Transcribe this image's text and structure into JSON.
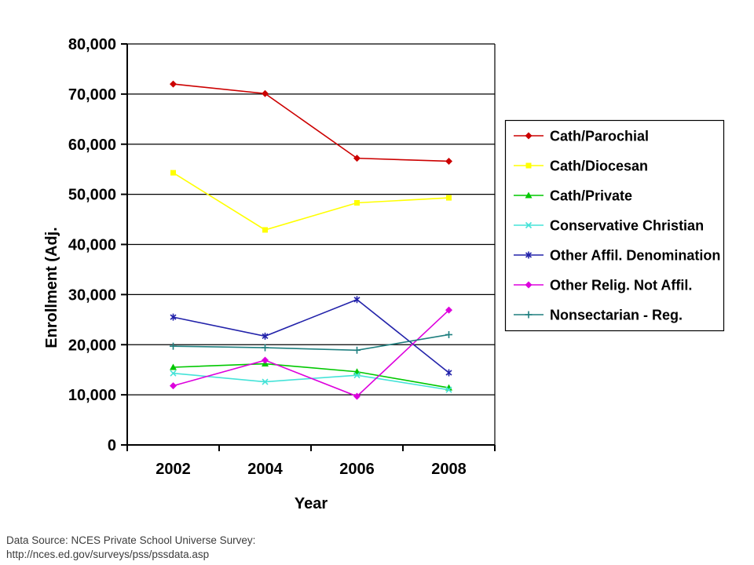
{
  "page": {
    "background": "#ffffff"
  },
  "chart_data": {
    "type": "line",
    "title": "",
    "xlabel": "Year",
    "ylabel": "Enrollment (Adj.",
    "x_tick_labels": [
      "2002",
      "2004",
      "2006",
      "2008"
    ],
    "ylim": [
      0,
      80000
    ],
    "ytick_step": 10000,
    "ytick_labels": [
      "0",
      "10,000",
      "20,000",
      "30,000",
      "40,000",
      "50,000",
      "60,000",
      "70,000",
      "80,000"
    ],
    "grid": true,
    "legend_position": "right",
    "axis_color": "#000000",
    "grid_color": "#000000",
    "series": [
      {
        "name": "Cath/Parochial",
        "color": "#cc0000",
        "marker": "diamond",
        "values": [
          72000,
          70100,
          57200,
          56600
        ]
      },
      {
        "name": "Cath/Diocesan",
        "color": "#ffff00",
        "marker": "square",
        "values": [
          54300,
          42900,
          48300,
          49300
        ]
      },
      {
        "name": "Cath/Private",
        "color": "#00c800",
        "marker": "triangle",
        "values": [
          15500,
          16200,
          14600,
          11400
        ]
      },
      {
        "name": "Conservative Christian",
        "color": "#45e3d8",
        "marker": "x",
        "values": [
          14300,
          12600,
          13900,
          11000
        ]
      },
      {
        "name": "Other Affil. Denomination",
        "color": "#2222aa",
        "marker": "star",
        "values": [
          25500,
          21700,
          29000,
          14400
        ]
      },
      {
        "name": "Other Relig. Not Affil.",
        "color": "#dd00dd",
        "marker": "diamond",
        "values": [
          11800,
          16900,
          9700,
          26900
        ]
      },
      {
        "name": "Nonsectarian - Reg.",
        "color": "#1f7f7f",
        "marker": "plus",
        "values": [
          19700,
          19400,
          18900,
          22000
        ]
      }
    ]
  },
  "footer": {
    "line1": "Data Source: NCES Private School Universe Survey:",
    "line2": "http://nces.ed.gov/surveys/pss/pssdata.asp"
  }
}
